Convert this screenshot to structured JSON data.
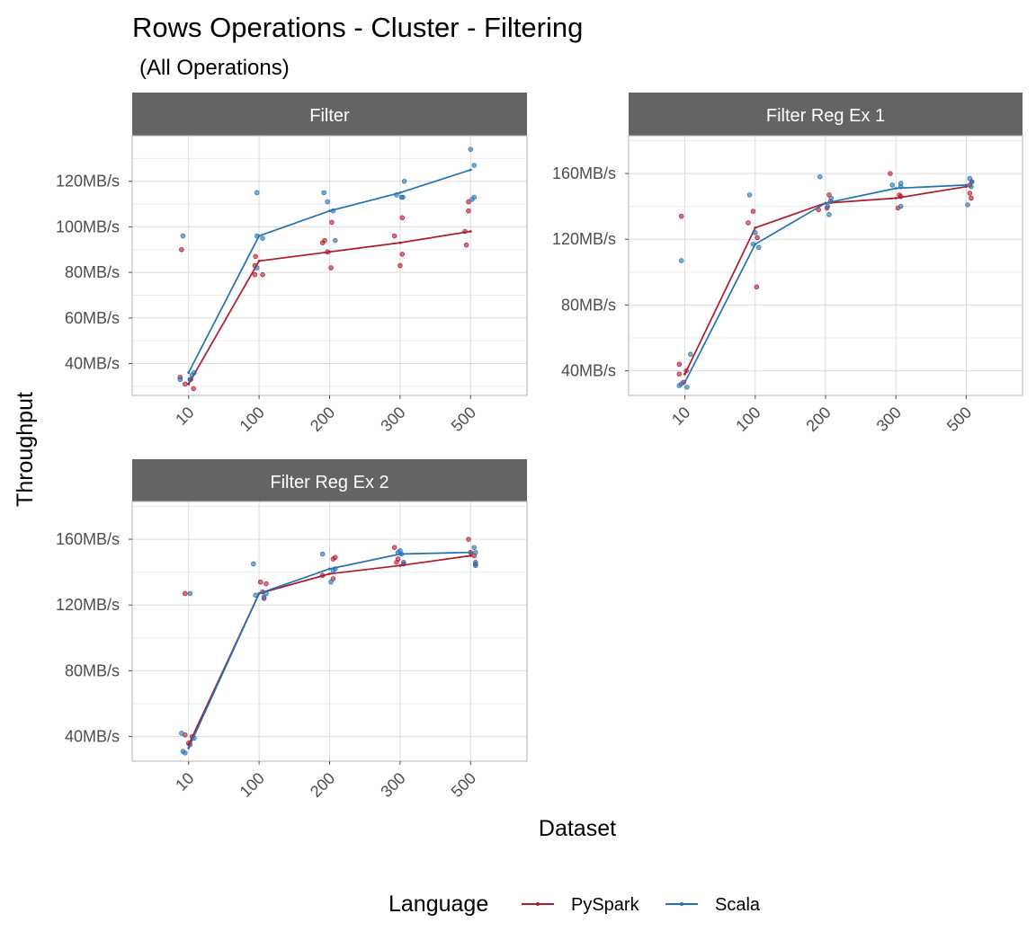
{
  "title": "Rows Operations - Cluster - Filtering",
  "subtitle": "(All Operations)",
  "xlabel": "Dataset",
  "ylabel": "Throughput",
  "legend": {
    "title": "Language",
    "items": [
      {
        "label": "PySpark",
        "color": "#b2182b"
      },
      {
        "label": "Scala",
        "color": "#2171b5"
      }
    ],
    "position": "bottom"
  },
  "chart_data": [
    {
      "type": "line",
      "panel": "Filter",
      "categories": [
        "10",
        "100",
        "200",
        "300",
        "500"
      ],
      "ylim": [
        26,
        140
      ],
      "yticks": [
        40,
        60,
        80,
        100,
        120
      ],
      "y_tick_labels": [
        "40MB/s",
        "60MB/s",
        "80MB/s",
        "100MB/s",
        "120MB/s"
      ],
      "grid": true,
      "series": [
        {
          "name": "PySpark",
          "values": [
            31,
            85,
            89,
            93,
            98
          ],
          "points": [
            [
              -0.12,
              34
            ],
            [
              -0.05,
              31
            ],
            [
              0.03,
              33
            ],
            [
              0.07,
              29
            ],
            [
              -0.1,
              90
            ],
            [
              -0.05,
              87
            ],
            [
              -0.06,
              79
            ],
            [
              0.05,
              79
            ],
            [
              -0.06,
              83
            ],
            [
              -0.03,
              89
            ],
            [
              0.02,
              82
            ],
            [
              0.03,
              102
            ],
            [
              -0.1,
              93
            ],
            [
              -0.07,
              94
            ],
            [
              0.0,
              83
            ],
            [
              0.03,
              88
            ],
            [
              0.03,
              104
            ],
            [
              -0.08,
              96
            ],
            [
              -0.08,
              98
            ],
            [
              -0.03,
              107
            ],
            [
              -0.03,
              111
            ],
            [
              -0.06,
              92
            ]
          ]
        },
        {
          "name": "Scala",
          "values": [
            36,
            96,
            107,
            115,
            125
          ],
          "points": [
            [
              -0.12,
              33
            ],
            [
              0.05,
              35
            ],
            [
              0.08,
              36
            ],
            [
              0.02,
              33
            ],
            [
              -0.08,
              96
            ],
            [
              -0.03,
              96
            ],
            [
              0.05,
              95
            ],
            [
              -0.03,
              82
            ],
            [
              -0.03,
              115
            ],
            [
              -0.03,
              111
            ],
            [
              0.05,
              107
            ],
            [
              0.08,
              94
            ],
            [
              -0.08,
              115
            ],
            [
              0.02,
              113
            ],
            [
              0.06,
              120
            ],
            [
              0.04,
              113
            ],
            [
              -0.05,
              114
            ],
            [
              0.05,
              127
            ],
            [
              0.0,
              134
            ],
            [
              0.02,
              112
            ],
            [
              0.05,
              113
            ]
          ]
        }
      ]
    },
    {
      "type": "line",
      "panel": "Filter Reg Ex 1",
      "categories": [
        "10",
        "100",
        "200",
        "300",
        "500"
      ],
      "ylim": [
        25,
        183
      ],
      "yticks": [
        40,
        80,
        120,
        160
      ],
      "y_tick_labels": [
        "40MB/s",
        "80MB/s",
        "120MB/s",
        "160MB/s"
      ],
      "grid": true,
      "series": [
        {
          "name": "PySpark",
          "values": [
            38,
            127,
            142,
            145,
            152
          ],
          "points": [
            [
              -0.08,
              44
            ],
            [
              -0.08,
              38
            ],
            [
              0.02,
              40
            ],
            [
              -0.02,
              33
            ],
            [
              -0.05,
              134
            ],
            [
              -0.03,
              137
            ],
            [
              0.02,
              91
            ],
            [
              0.03,
              121
            ],
            [
              -0.1,
              130
            ],
            [
              0.05,
              147
            ],
            [
              0.02,
              139
            ],
            [
              0.07,
              143
            ],
            [
              -0.1,
              138
            ],
            [
              0.03,
              139
            ],
            [
              0.07,
              146
            ],
            [
              0.05,
              147
            ],
            [
              -0.08,
              160
            ],
            [
              0.05,
              153
            ],
            [
              0.05,
              148
            ],
            [
              0.07,
              145
            ],
            [
              0.08,
              155
            ]
          ]
        },
        {
          "name": "Scala",
          "values": [
            33,
            117,
            142,
            151,
            153
          ],
          "points": [
            [
              -0.08,
              31
            ],
            [
              -0.05,
              32
            ],
            [
              0.08,
              50
            ],
            [
              0.03,
              30
            ],
            [
              -0.05,
              107
            ],
            [
              0.05,
              115
            ],
            [
              0.0,
              124
            ],
            [
              -0.03,
              117
            ],
            [
              -0.08,
              147
            ],
            [
              0.05,
              135
            ],
            [
              0.03,
              140
            ],
            [
              0.08,
              145
            ],
            [
              -0.08,
              158
            ],
            [
              0.07,
              152
            ],
            [
              0.07,
              140
            ],
            [
              0.07,
              154
            ],
            [
              -0.05,
              153
            ],
            [
              0.02,
              141
            ],
            [
              0.05,
              157
            ],
            [
              0.08,
              155
            ],
            [
              0.07,
              152
            ]
          ]
        }
      ]
    },
    {
      "type": "line",
      "panel": "Filter Reg Ex 2",
      "categories": [
        "10",
        "100",
        "200",
        "300",
        "500"
      ],
      "ylim": [
        25,
        183
      ],
      "yticks": [
        40,
        80,
        120,
        160
      ],
      "y_tick_labels": [
        "40MB/s",
        "80MB/s",
        "120MB/s",
        "160MB/s"
      ],
      "grid": true,
      "series": [
        {
          "name": "PySpark",
          "values": [
            35,
            127,
            139,
            144,
            150
          ],
          "points": [
            [
              -0.05,
              41
            ],
            [
              0.02,
              35
            ],
            [
              0.05,
              40
            ],
            [
              0.0,
              36
            ],
            [
              -0.05,
              127
            ],
            [
              0.05,
              128
            ],
            [
              0.1,
              133
            ],
            [
              0.07,
              124
            ],
            [
              0.02,
              134
            ],
            [
              0.05,
              136
            ],
            [
              0.05,
              148
            ],
            [
              0.08,
              149
            ],
            [
              -0.1,
              138
            ],
            [
              -0.05,
              146
            ],
            [
              -0.03,
              148
            ],
            [
              0.05,
              145
            ],
            [
              -0.08,
              155
            ],
            [
              -0.03,
              160
            ],
            [
              0.0,
              152
            ],
            [
              0.05,
              150
            ],
            [
              0.07,
              145
            ]
          ]
        },
        {
          "name": "Scala",
          "values": [
            33,
            127,
            142,
            151,
            152
          ],
          "points": [
            [
              -0.1,
              42
            ],
            [
              -0.08,
              31
            ],
            [
              -0.05,
              30
            ],
            [
              0.08,
              39
            ],
            [
              0.02,
              127
            ],
            [
              -0.05,
              126
            ],
            [
              0.07,
              125
            ],
            [
              0.1,
              127
            ],
            [
              -0.08,
              145
            ],
            [
              0.02,
              134
            ],
            [
              0.08,
              142
            ],
            [
              0.05,
              141
            ],
            [
              -0.1,
              151
            ],
            [
              0.0,
              153
            ],
            [
              0.02,
              151
            ],
            [
              0.05,
              146
            ],
            [
              -0.03,
              152
            ],
            [
              0.05,
              155
            ],
            [
              0.07,
              152
            ],
            [
              0.07,
              146
            ],
            [
              0.07,
              144
            ]
          ]
        }
      ]
    }
  ]
}
